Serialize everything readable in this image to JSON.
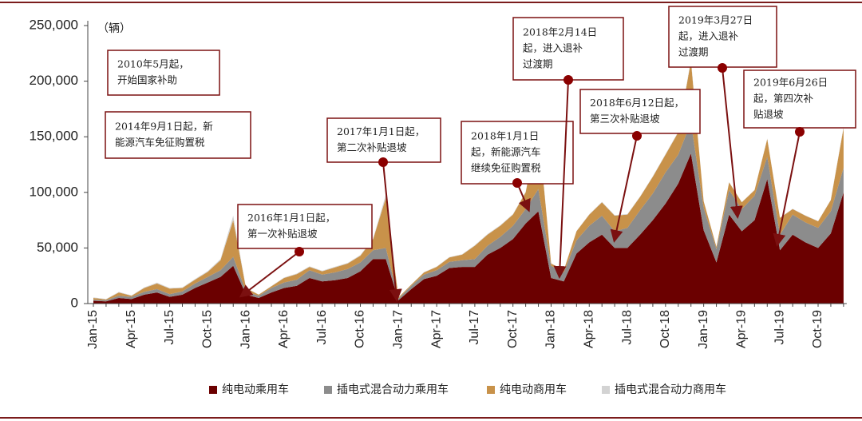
{
  "chart_data": {
    "type": "stacked_area",
    "y_label": "（辆）",
    "categories": [
      "Jan-15",
      null,
      null,
      "Apr-15",
      null,
      null,
      "Jul-15",
      null,
      null,
      "Oct-15",
      null,
      null,
      "Jan-16",
      null,
      null,
      "Apr-16",
      null,
      null,
      "Jul-16",
      null,
      null,
      "Oct-16",
      null,
      null,
      "Jan-17",
      null,
      null,
      "Apr-17",
      null,
      null,
      "Jul-17",
      null,
      null,
      "Oct-17",
      null,
      null,
      "Jan-18",
      null,
      null,
      "Apr-18",
      null,
      null,
      "Jul-18",
      null,
      null,
      "Oct-18",
      null,
      null,
      "Jan-19",
      null,
      null,
      "Apr-19",
      null,
      null,
      "Jul-19",
      null,
      null,
      "Oct-19",
      null,
      null
    ],
    "series": [
      {
        "name": "纯电动乘用车",
        "color": "#6b0000",
        "values": [
          2500,
          2000,
          5000,
          4000,
          8000,
          10000,
          6000,
          8000,
          14000,
          19000,
          24000,
          34000,
          8000,
          5000,
          10000,
          14000,
          16000,
          23000,
          20000,
          21000,
          23000,
          29000,
          40000,
          40000,
          3000,
          13000,
          22000,
          25000,
          32000,
          33000,
          33000,
          44000,
          50000,
          58000,
          72000,
          83000,
          23000,
          20000,
          45000,
          55000,
          62000,
          50000,
          50000,
          62000,
          75000,
          90000,
          108000,
          135000,
          66000,
          37000,
          80000,
          65000,
          75000,
          112000,
          48000,
          62000,
          55000,
          50000,
          63000,
          100000
        ]
      },
      {
        "name": "插电式混合动力乘用车",
        "color": "#8c8c8c",
        "values": [
          1000,
          1000,
          2000,
          2000,
          2500,
          3000,
          2500,
          3000,
          4000,
          5000,
          6000,
          8000,
          3000,
          2000,
          4000,
          5000,
          5500,
          7000,
          6000,
          7000,
          8000,
          8000,
          8000,
          10000,
          1500,
          3000,
          4000,
          5000,
          5500,
          6000,
          7000,
          8000,
          10000,
          12000,
          13000,
          20000,
          11000,
          8000,
          12000,
          15000,
          17000,
          15000,
          18000,
          22000,
          24000,
          28000,
          26000,
          28000,
          20000,
          12000,
          22000,
          20000,
          22000,
          20000,
          14000,
          18000,
          18000,
          18000,
          20000,
          22000
        ]
      },
      {
        "name": "纯电动商用车",
        "color": "#c8924a",
        "values": [
          1500,
          800,
          3000,
          1000,
          3500,
          5000,
          5000,
          3000,
          3500,
          4500,
          9000,
          33000,
          3000,
          1000,
          1500,
          4000,
          5000,
          3000,
          3000,
          4500,
          5000,
          6000,
          10000,
          45000,
          1000,
          1000,
          2000,
          3000,
          4000,
          5000,
          12000,
          10000,
          10000,
          10000,
          15000,
          55000,
          2000,
          2000,
          8000,
          10000,
          12000,
          14000,
          12000,
          12000,
          15000,
          16000,
          20000,
          55000,
          6000,
          2000,
          7000,
          6000,
          5000,
          16000,
          15000,
          5000,
          6000,
          6000,
          10000,
          36000
        ]
      },
      {
        "name": "插电式混合动力商用车",
        "color": "#d3d3d3",
        "values": [
          500,
          300,
          500,
          300,
          500,
          800,
          500,
          500,
          600,
          800,
          1000,
          4000,
          300,
          200,
          300,
          400,
          500,
          500,
          500,
          600,
          600,
          700,
          800,
          3000,
          200,
          200,
          300,
          300,
          400,
          400,
          500,
          500,
          500,
          500,
          600,
          1500,
          300,
          200,
          400,
          400,
          500,
          500,
          500,
          500,
          600,
          600,
          700,
          1500,
          200,
          200,
          300,
          300,
          300,
          500,
          300,
          300,
          300,
          300,
          400,
          1000
        ]
      }
    ],
    "ylim": [
      0,
      250000
    ],
    "yticks": [
      0,
      {
        "value": 50000,
        "label": "50,000"
      },
      {
        "value": 100000,
        "label": "100,000"
      },
      {
        "value": 150000,
        "label": "150,000"
      },
      {
        "value": 200000,
        "label": "200,000"
      },
      {
        "value": 250000,
        "label": "250,000"
      }
    ],
    "legend": "bottom",
    "annotations": [
      [
        "2010年5月起，",
        "开始国家补助"
      ],
      [
        "2014年9月1日起，新",
        "能源汽车免征购置税"
      ],
      [
        "2016年1月1日起，",
        "第一次补贴退坡"
      ],
      [
        "2017年1月1日起，",
        "第二次补贴退坡"
      ],
      [
        "2018年1月1日",
        "起，新能源汽车",
        "继续免征购置税"
      ],
      [
        "2018年2月14日",
        "起，进入退补",
        "过渡期"
      ],
      [
        "2018年6月12日起，",
        "第三次补贴退坡"
      ],
      [
        "2019年3月27日",
        "起，进入退补",
        "过渡期"
      ],
      [
        "2019年6月26日",
        "起，第四次补",
        "贴退坡"
      ]
    ]
  }
}
